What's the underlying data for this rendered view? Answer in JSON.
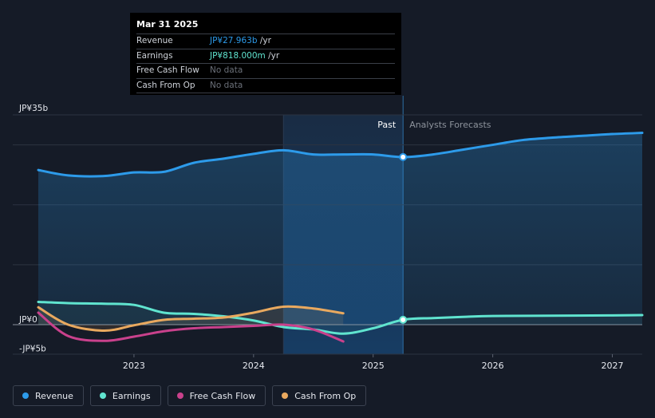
{
  "tooltip": {
    "date": "Mar 31 2025",
    "rows": [
      {
        "name": "Revenue",
        "value": "JP¥27.963b",
        "unit": "/yr",
        "color": "#2d9bea"
      },
      {
        "name": "Earnings",
        "value": "JP¥818.000m",
        "unit": "/yr",
        "color": "#60e4cf"
      },
      {
        "name": "Free Cash Flow",
        "value": "No data",
        "unit": "",
        "color": "#6b7079"
      },
      {
        "name": "Cash From Op",
        "value": "No data",
        "unit": "",
        "color": "#6b7079"
      }
    ]
  },
  "regions": {
    "past": "Past",
    "forecast": "Analysts Forecasts"
  },
  "legend": [
    {
      "label": "Revenue",
      "color": "#2d9bea"
    },
    {
      "label": "Earnings",
      "color": "#60e4cf"
    },
    {
      "label": "Free Cash Flow",
      "color": "#c9418c"
    },
    {
      "label": "Cash From Op",
      "color": "#e9a95f"
    }
  ],
  "chart_data": {
    "type": "line",
    "title": "",
    "xlabel": "",
    "ylabel": "",
    "y_unit": "JP¥ billions",
    "ylim": [
      -5,
      35
    ],
    "xlim": [
      2022.2,
      2027.25
    ],
    "y_tick_labels": [
      {
        "value": 35,
        "label": "JP¥35b"
      },
      {
        "value": 0,
        "label": "JP¥0"
      },
      {
        "value": -5,
        "label": "-JP¥5b"
      }
    ],
    "x_tick_labels": [
      {
        "value": 2023,
        "label": "2023"
      },
      {
        "value": 2024,
        "label": "2024"
      },
      {
        "value": 2025,
        "label": "2025"
      },
      {
        "value": 2026,
        "label": "2026"
      },
      {
        "value": 2027,
        "label": "2027"
      }
    ],
    "past_start": 2024.25,
    "divider": 2025.25,
    "series": [
      {
        "name": "Revenue",
        "color": "#2d9bea",
        "fill": true,
        "x": [
          2022.2,
          2022.45,
          2022.75,
          2023.0,
          2023.25,
          2023.5,
          2023.75,
          2024.0,
          2024.25,
          2024.5,
          2024.75,
          2025.0,
          2025.25,
          2025.5,
          2025.75,
          2026.0,
          2026.25,
          2026.5,
          2026.75,
          2027.0,
          2027.25
        ],
        "values": [
          25.8,
          24.9,
          24.8,
          25.4,
          25.5,
          27.0,
          27.7,
          28.5,
          29.1,
          28.4,
          28.4,
          28.4,
          27.96,
          28.4,
          29.2,
          30.0,
          30.8,
          31.2,
          31.5,
          31.8,
          32.0
        ]
      },
      {
        "name": "Earnings",
        "color": "#60e4cf",
        "x": [
          2022.2,
          2022.45,
          2022.75,
          2023.0,
          2023.25,
          2023.5,
          2023.75,
          2024.0,
          2024.25,
          2024.5,
          2024.75,
          2025.0,
          2025.25,
          2025.5,
          2025.75,
          2026.0,
          2026.5,
          2027.0,
          2027.25
        ],
        "values": [
          3.8,
          3.6,
          3.5,
          3.3,
          2.0,
          1.8,
          1.4,
          0.7,
          -0.4,
          -0.8,
          -1.5,
          -0.6,
          0.818,
          1.1,
          1.3,
          1.45,
          1.5,
          1.55,
          1.6
        ]
      },
      {
        "name": "Free Cash Flow",
        "color": "#c9418c",
        "x": [
          2022.2,
          2022.45,
          2022.75,
          2023.0,
          2023.25,
          2023.5,
          2023.75,
          2024.0,
          2024.25,
          2024.5,
          2024.75
        ],
        "values": [
          2.0,
          -1.9,
          -2.7,
          -2.0,
          -1.1,
          -0.6,
          -0.4,
          -0.2,
          0.0,
          -0.8,
          -2.8
        ]
      },
      {
        "name": "Cash From Op",
        "color": "#e9a95f",
        "x": [
          2022.2,
          2022.45,
          2022.75,
          2023.0,
          2023.25,
          2023.5,
          2023.75,
          2024.0,
          2024.25,
          2024.5,
          2024.75
        ],
        "values": [
          2.9,
          0.0,
          -1.0,
          -0.1,
          0.8,
          1.0,
          1.2,
          2.0,
          3.0,
          2.7,
          1.9
        ]
      }
    ],
    "highlight_points": [
      {
        "series": "Revenue",
        "x": 2025.25,
        "value": 27.963
      },
      {
        "series": "Earnings",
        "x": 2025.25,
        "value": 0.818
      }
    ]
  }
}
